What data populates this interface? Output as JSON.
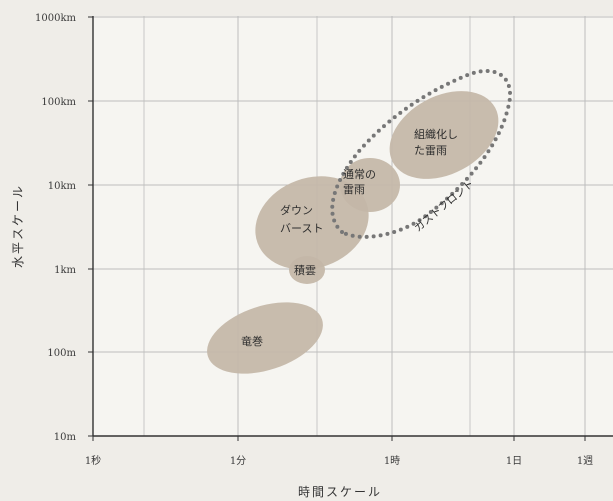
{
  "chart_data": {
    "type": "scatter",
    "xlabel": "時間スケール",
    "ylabel": "水平スケール",
    "x_ticks": [
      "1秒",
      "1分",
      "1時",
      "1日",
      "1週"
    ],
    "y_ticks": [
      "10m",
      "100m",
      "1km",
      "10km",
      "100km",
      "1000km"
    ],
    "x_scale": "log",
    "y_scale": "log",
    "grid": true,
    "regions": [
      {
        "label": "竜巻",
        "time": "約1分〜10分",
        "horizontal_scale": "約100m〜1km"
      },
      {
        "label": "積雲",
        "time": "約10分",
        "horizontal_scale": "約1km"
      },
      {
        "label": "ダウンバースト",
        "time": "約5分〜1時間",
        "horizontal_scale": "約1km〜10km"
      },
      {
        "label": "通常の雷雨",
        "time": "約30分〜1時間",
        "horizontal_scale": "約5km〜15km"
      },
      {
        "label": "組織化した雷雨",
        "time": "約1時間〜半日",
        "horizontal_scale": "約10km〜100km"
      },
      {
        "label": "ガストフロント",
        "time": "約30分〜1日",
        "horizontal_scale": "約3km〜200km",
        "style": "dotted-outline"
      }
    ],
    "colors": {
      "region_fill": "#c4b7a8",
      "dots": "#777777",
      "grid": "#bdbdbd",
      "background": "#efede8"
    }
  }
}
